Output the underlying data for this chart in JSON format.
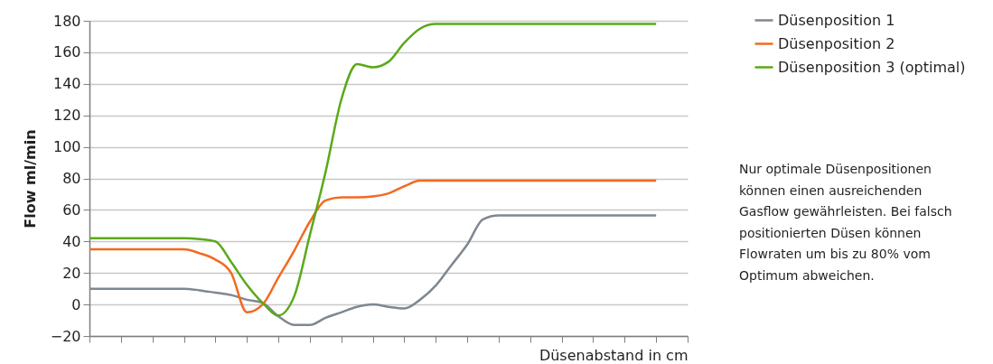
{
  "chart_data": {
    "type": "line",
    "xlabel": "Düsenabstand in cm",
    "ylabel": "Flow ml/min",
    "categories": [
      null,
      null,
      null,
      null,
      null,
      null,
      null,
      null,
      null,
      null,
      null,
      null,
      null,
      null,
      null,
      null,
      null,
      null,
      null,
      null,
      null,
      null,
      null,
      null,
      null,
      null,
      null,
      null,
      null,
      null,
      null,
      null,
      null,
      null,
      null,
      null,
      null,
      null,
      null
    ],
    "series": [
      {
        "name": "Düsenposition 1",
        "color": "#7f8791",
        "values": [
          10,
          10,
          10,
          10,
          10,
          10,
          10,
          9,
          7.5,
          6,
          3,
          1,
          -7.5,
          -13,
          -13,
          -8.5,
          -5,
          -1.5,
          0,
          -1.5,
          -2.5,
          3,
          12,
          25,
          38,
          54,
          56.5,
          56.5,
          56.5,
          56.5,
          56.5,
          56.5,
          56.5,
          56.5,
          56.5,
          56.5,
          56.5,
          null,
          null
        ]
      },
      {
        "name": "Düsenposition 2",
        "color": "#f26a21",
        "values": [
          35,
          35,
          35,
          35,
          35,
          35,
          35,
          32.5,
          28.5,
          20,
          -5,
          0,
          17,
          34,
          52.5,
          66,
          68,
          68,
          68.5,
          70.5,
          75,
          78.5,
          78.5,
          78.5,
          78.5,
          78.5,
          78.5,
          78.5,
          78.5,
          78.5,
          78.5,
          78.5,
          78.5,
          78.5,
          78.5,
          78.5,
          78.5,
          null,
          null
        ]
      },
      {
        "name": "Düsenposition 3 (optimal)",
        "color": "#5aa919",
        "values": [
          42,
          42,
          42,
          42,
          42,
          42,
          42,
          41.5,
          40,
          27,
          12.5,
          1,
          -7,
          5,
          44,
          84,
          130,
          152.5,
          150.5,
          154,
          166,
          175,
          178,
          178,
          178,
          178,
          178,
          178,
          178,
          178,
          178,
          178,
          178,
          178,
          178,
          178,
          178,
          null,
          null
        ]
      }
    ],
    "ylim": [
      -20,
      180
    ],
    "yticks": [
      -20,
      0,
      20,
      40,
      60,
      80,
      100,
      120,
      140,
      160,
      180
    ],
    "grid": "y",
    "legend": "right",
    "annotations": [
      "Nur optimale Düsenpositionen können einen ausreichenden Gasflow gewährleisten. Bei falsch positionierten Düsen können Flowraten um bis zu 80% vom Optimum abweichen."
    ]
  }
}
